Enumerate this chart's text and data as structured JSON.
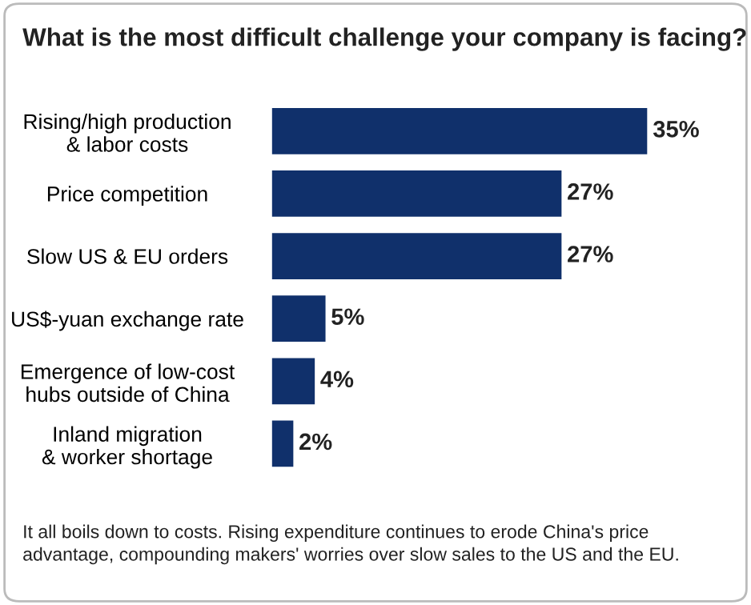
{
  "chart_data": {
    "type": "bar",
    "orientation": "horizontal",
    "title": "What is the most difficult challenge your company is facing?",
    "categories": [
      "Rising/high production\n& labor costs",
      "Price competition",
      "Slow US & EU orders",
      "US$-yuan exchange rate",
      "Emergence of low-cost\nhubs outside of China",
      "Inland migration\n& worker shortage"
    ],
    "values": [
      35,
      27,
      27,
      5,
      4,
      2
    ],
    "value_labels": [
      "35%",
      "27%",
      "27%",
      "5%",
      "4%",
      "2%"
    ],
    "color": "#10306b",
    "annotations": [
      "It all boils down to costs. Rising expenditure continues to erode China's price\nadvantage, compounding makers' worries over slow sales to the US and the EU."
    ]
  }
}
